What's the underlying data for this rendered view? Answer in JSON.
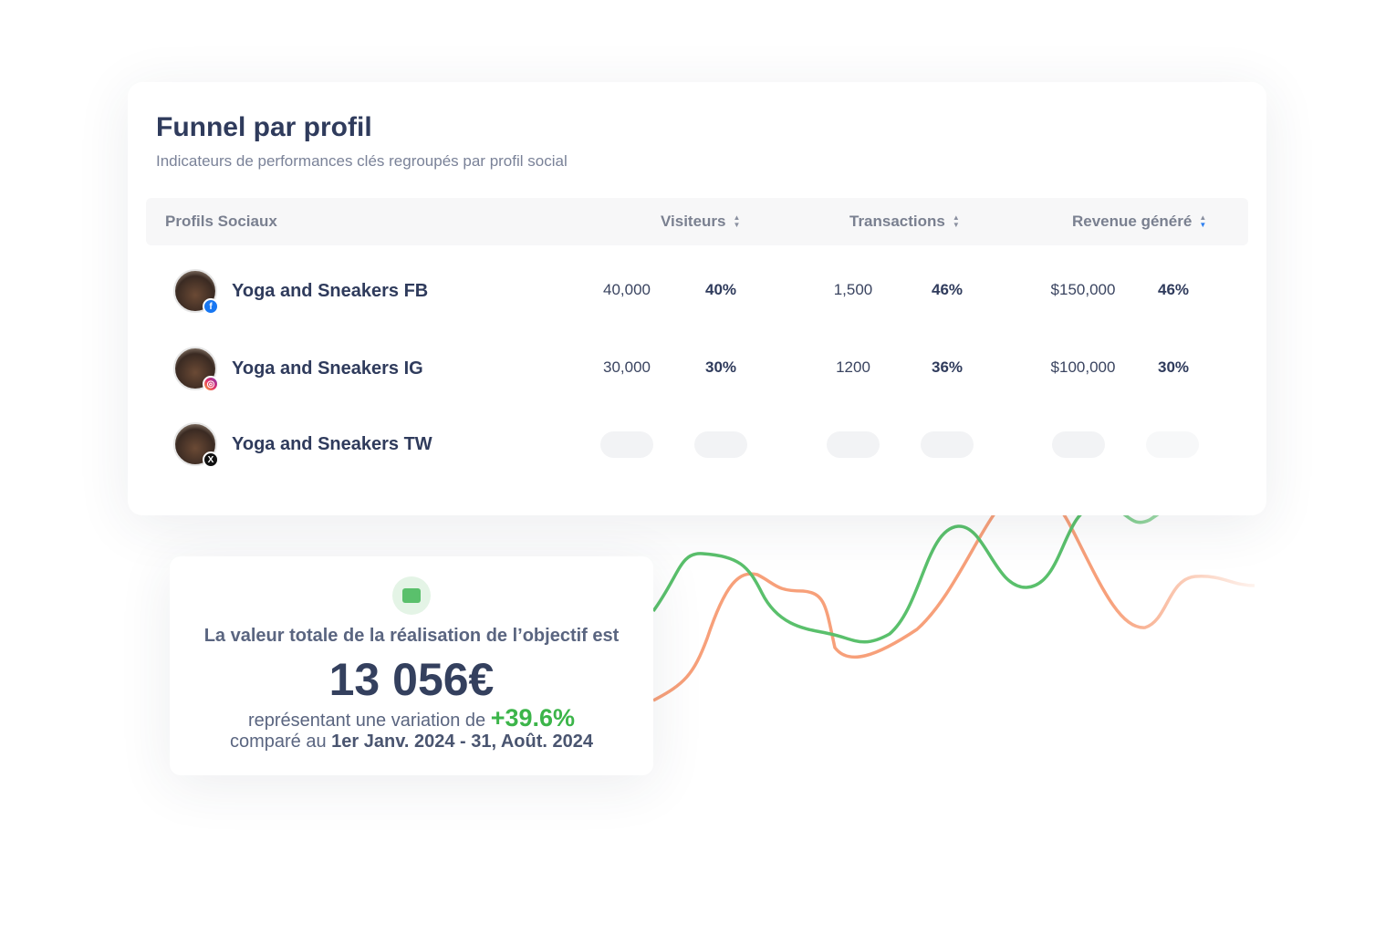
{
  "header": {
    "title": "Funnel par profil",
    "subtitle": "Indicateurs de performances clés regroupés par profil social"
  },
  "table": {
    "columns": [
      "Profils Sociaux",
      "Visiteurs",
      "Transactions",
      "Revenue généré"
    ],
    "rows": [
      {
        "name": "Yoga and Sneakers FB",
        "network": "facebook",
        "visitors": "40,000",
        "visitors_pct": "40%",
        "transactions": "1,500",
        "transactions_pct": "46%",
        "revenue": "$150,000",
        "revenue_pct": "46%"
      },
      {
        "name": "Yoga and Sneakers IG",
        "network": "instagram",
        "visitors": "30,000",
        "visitors_pct": "30%",
        "transactions": "1200",
        "transactions_pct": "36%",
        "revenue": "$100,000",
        "revenue_pct": "30%"
      },
      {
        "name": "Yoga and Sneakers TW",
        "network": "x",
        "loading": true
      }
    ]
  },
  "goal": {
    "icon": "wallet-icon",
    "label": "La valeur totale de la réalisation de l’objectif est",
    "value": "13 056€",
    "variation_prefix": "représentant une variation de",
    "variation": "+39.6%",
    "compare_prefix": "comparé au",
    "compare_range": "1er Janv. 2024 - 31, Août. 2024"
  },
  "colors": {
    "green": "#5ac06c",
    "orange": "#f7a07a",
    "accent": "#2d7ff0"
  }
}
